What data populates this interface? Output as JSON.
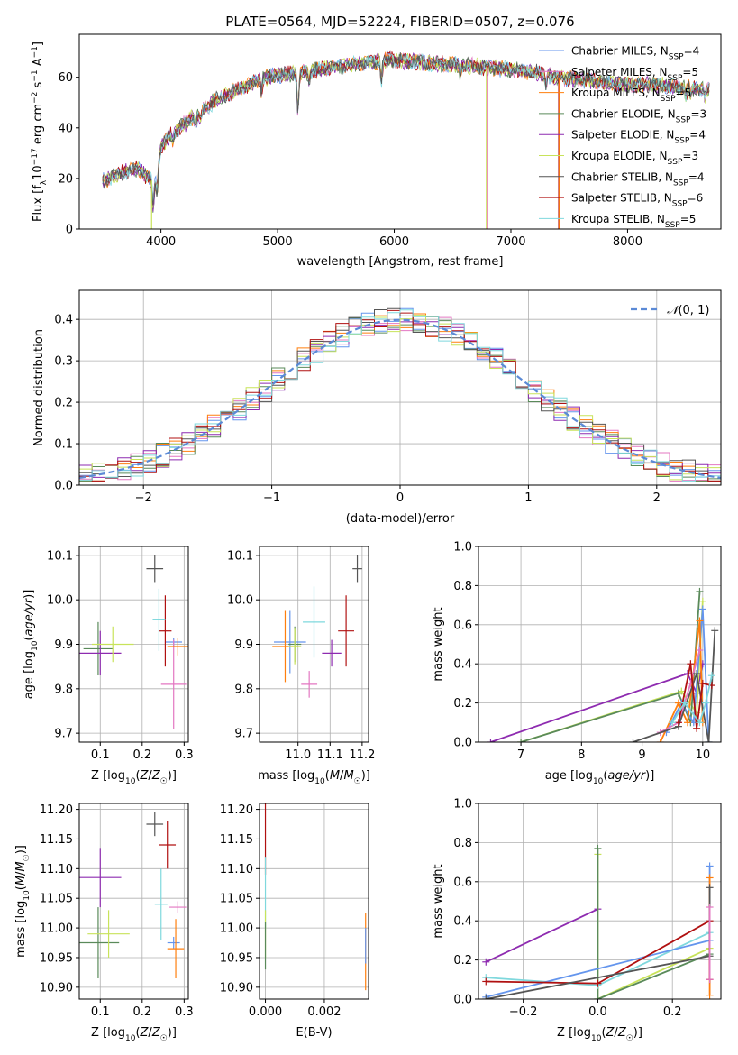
{
  "title": "PLATE=0564, MJD=52224, FIBERID=0507, z=0.076",
  "colors": {
    "Chabrier MILES": "#6495ed",
    "Salpeter MILES": "#e377c2",
    "Kroupa MILES": "#ff7f0e",
    "Chabrier ELODIE": "#5a8a5a",
    "Salpeter ELODIE": "#8e2bb0",
    "Kroupa ELODIE": "#c8e35a",
    "Chabrier STELIB": "#555555",
    "Salpeter STELIB": "#b01010",
    "Kroupa STELIB": "#7fd8dd"
  },
  "chart_data": [
    {
      "type": "line",
      "name": "spectrum",
      "xlabel": "wavelength [Angstrom, rest frame]",
      "ylabel": "Flux [fλ10⁻¹⁷ erg cm⁻² s⁻¹ A⁻¹]",
      "xlim": [
        3300,
        8800
      ],
      "ylim": [
        0,
        77
      ],
      "xticks": [
        4000,
        5000,
        6000,
        7000,
        8000
      ],
      "yticks": [
        0,
        20,
        40,
        60
      ],
      "legend_position": "top-right",
      "legend": [
        {
          "model": "Chabrier MILES",
          "label": "Chabrier MILES, N",
          "sub": "SSP",
          "tail": "=4"
        },
        {
          "model": "Salpeter MILES",
          "label": "Salpeter MILES, N",
          "sub": "SSP",
          "tail": "=5"
        },
        {
          "model": "Kroupa MILES",
          "label": "Kroupa MILES, N",
          "sub": "SSP",
          "tail": "=5"
        },
        {
          "model": "Chabrier ELODIE",
          "label": "Chabrier ELODIE, N",
          "sub": "SSP",
          "tail": "=3"
        },
        {
          "model": "Salpeter ELODIE",
          "label": "Salpeter ELODIE, N",
          "sub": "SSP",
          "tail": "=4"
        },
        {
          "model": "Kroupa ELODIE",
          "label": "Kroupa ELODIE, N",
          "sub": "SSP",
          "tail": "=3"
        },
        {
          "model": "Chabrier STELIB",
          "label": "Chabrier STELIB, N",
          "sub": "SSP",
          "tail": "=4"
        },
        {
          "model": "Salpeter STELIB",
          "label": "Salpeter STELIB, N",
          "sub": "SSP",
          "tail": "=6"
        },
        {
          "model": "Kroupa STELIB",
          "label": "Kroupa STELIB, N",
          "sub": "SSP",
          "tail": "=5"
        }
      ],
      "continuum_x": [
        3500,
        3650,
        3800,
        3950,
        4000,
        4100,
        4300,
        4500,
        4700,
        4900,
        5200,
        5500,
        5800,
        6000,
        6200,
        6500,
        6800,
        7000,
        7200,
        7400,
        7600,
        7800,
        8000,
        8200,
        8500,
        8700
      ],
      "continuum_y": [
        19,
        22,
        24,
        18,
        33,
        38,
        45,
        52,
        56,
        60,
        62,
        64,
        66,
        67,
        66,
        65,
        64,
        63,
        62,
        60,
        59,
        58,
        57,
        57,
        56,
        55
      ],
      "drops": [
        {
          "model": "Kroupa ELODIE",
          "x": 3920
        },
        {
          "model": "Kroupa ELODIE",
          "x": 6790
        },
        {
          "model": "Kroupa MILES",
          "x": 6800
        },
        {
          "model": "Salpeter MILES",
          "x": 6800
        },
        {
          "model": "Salpeter STELIB",
          "x": 7410
        },
        {
          "model": "Kroupa MILES",
          "x": 7415
        }
      ]
    },
    {
      "type": "step",
      "name": "residual-histogram",
      "xlabel": "(data-model)/error",
      "ylabel": "Normed distribution",
      "xlim": [
        -2.5,
        2.5
      ],
      "ylim": [
        0,
        0.47
      ],
      "xticks": [
        -2,
        -1,
        0,
        1,
        2
      ],
      "yticks": [
        0.0,
        0.1,
        0.2,
        0.3,
        0.4
      ],
      "legend_position": "top-right",
      "gaussian_label": "N(0,1)",
      "bins": 50,
      "series": [
        {
          "model": "Chabrier MILES",
          "seed": 1
        },
        {
          "model": "Salpeter MILES",
          "seed": 2
        },
        {
          "model": "Kroupa MILES",
          "seed": 3
        },
        {
          "model": "Chabrier ELODIE",
          "seed": 4
        },
        {
          "model": "Salpeter ELODIE",
          "seed": 5
        },
        {
          "model": "Kroupa ELODIE",
          "seed": 6
        },
        {
          "model": "Chabrier STELIB",
          "seed": 7
        },
        {
          "model": "Salpeter STELIB",
          "seed": 8
        },
        {
          "model": "Kroupa STELIB",
          "seed": 9
        }
      ]
    },
    {
      "type": "scatter",
      "name": "age-vs-Z",
      "xlabel": "Z [log10(Z/Z☉)]",
      "ylabel": "age [log10(age/yr)]",
      "xlim": [
        0.05,
        0.31
      ],
      "ylim": [
        9.68,
        10.12
      ],
      "xticks": [
        0.1,
        0.2,
        0.3
      ],
      "xtick_labels": [
        "0.1",
        "0.2",
        "0.3"
      ],
      "yticks": [
        9.7,
        9.8,
        9.9,
        10.0,
        10.1
      ],
      "ytick_labels": [
        "9.7",
        "9.8",
        "9.9",
        "10.0",
        "10.1"
      ],
      "points": [
        {
          "model": "Chabrier MILES",
          "x": 0.275,
          "y": 9.905,
          "xerr": 0.02,
          "yerr": 0.01
        },
        {
          "model": "Salpeter MILES",
          "x": 0.275,
          "y": 9.81,
          "xerr": 0.03,
          "yerr": 0.1
        },
        {
          "model": "Kroupa MILES",
          "x": 0.285,
          "y": 9.895,
          "xerr": 0.025,
          "yerr": 0.02
        },
        {
          "model": "Chabrier ELODIE",
          "x": 0.095,
          "y": 9.89,
          "xerr": 0.035,
          "yerr": 0.06
        },
        {
          "model": "Salpeter ELODIE",
          "x": 0.1,
          "y": 9.88,
          "xerr": 0.05,
          "yerr": 0.05
        },
        {
          "model": "Kroupa ELODIE",
          "x": 0.13,
          "y": 9.9,
          "xerr": 0.05,
          "yerr": 0.04
        },
        {
          "model": "Chabrier STELIB",
          "x": 0.23,
          "y": 10.07,
          "xerr": 0.02,
          "yerr": 0.03
        },
        {
          "model": "Salpeter STELIB",
          "x": 0.255,
          "y": 9.93,
          "xerr": 0.015,
          "yerr": 0.08
        },
        {
          "model": "Kroupa STELIB",
          "x": 0.24,
          "y": 9.955,
          "xerr": 0.015,
          "yerr": 0.07
        }
      ]
    },
    {
      "type": "scatter",
      "name": "age-vs-mass",
      "xlabel": "mass [log10(M/M☉)]",
      "ylabel": "",
      "xlim": [
        10.88,
        11.22
      ],
      "ylim": [
        9.68,
        10.12
      ],
      "xticks": [
        11.0,
        11.1,
        11.2
      ],
      "xtick_labels": [
        "11.0",
        "11.1",
        "11.2"
      ],
      "yticks": [
        9.7,
        9.8,
        9.9,
        10.0,
        10.1
      ],
      "ytick_labels": [
        "9.7",
        "9.8",
        "9.9",
        "10.0",
        "10.1"
      ],
      "points": [
        {
          "model": "Chabrier MILES",
          "x": 10.975,
          "y": 9.905,
          "xerr": 0.05,
          "yerr": 0.07
        },
        {
          "model": "Salpeter MILES",
          "x": 11.035,
          "y": 9.81,
          "xerr": 0.025,
          "yerr": 0.03
        },
        {
          "model": "Kroupa MILES",
          "x": 10.96,
          "y": 9.895,
          "xerr": 0.04,
          "yerr": 0.08
        },
        {
          "model": "Chabrier ELODIE",
          "x": 10.99,
          "y": 9.9,
          "xerr": 0.02,
          "yerr": 0.04
        },
        {
          "model": "Salpeter ELODIE",
          "x": 11.105,
          "y": 9.88,
          "xerr": 0.03,
          "yerr": 0.03
        },
        {
          "model": "Kroupa ELODIE",
          "x": 10.99,
          "y": 9.895,
          "xerr": 0.02,
          "yerr": 0.04
        },
        {
          "model": "Chabrier STELIB",
          "x": 11.185,
          "y": 10.07,
          "xerr": 0.015,
          "yerr": 0.03
        },
        {
          "model": "Salpeter STELIB",
          "x": 11.15,
          "y": 9.93,
          "xerr": 0.025,
          "yerr": 0.08
        },
        {
          "model": "Kroupa STELIB",
          "x": 11.05,
          "y": 9.95,
          "xerr": 0.035,
          "yerr": 0.08
        }
      ]
    },
    {
      "type": "line",
      "name": "mass-weight-vs-age",
      "xlabel": "age [log10(age/yr)]",
      "ylabel": "mass weight",
      "xlim": [
        6.3,
        10.3
      ],
      "ylim": [
        0,
        1.0
      ],
      "xticks": [
        7,
        8,
        9,
        10
      ],
      "xtick_labels": [
        "7",
        "8",
        "9",
        "10"
      ],
      "yticks": [
        0,
        0.2,
        0.4,
        0.6,
        0.8,
        1.0
      ],
      "ytick_labels": [
        "0.0",
        "0.2",
        "0.4",
        "0.6",
        "0.8",
        "1.0"
      ],
      "series": [
        {
          "model": "Salpeter ELODIE",
          "x": [
            6.5,
            9.75,
            9.9,
            10.0
          ],
          "y": [
            0.0,
            0.35,
            0.25,
            0.4
          ]
        },
        {
          "model": "Kroupa ELODIE",
          "x": [
            7.0,
            9.65,
            9.9,
            10.0
          ],
          "y": [
            0.0,
            0.26,
            0.15,
            0.72
          ]
        },
        {
          "model": "Chabrier ELODIE",
          "x": [
            7.0,
            9.6,
            9.8,
            9.95
          ],
          "y": [
            0.0,
            0.25,
            0.1,
            0.77
          ]
        },
        {
          "model": "Chabrier MILES",
          "x": [
            9.4,
            9.65,
            9.85,
            10.0,
            10.1
          ],
          "y": [
            0.05,
            0.2,
            0.1,
            0.68,
            0.0
          ]
        },
        {
          "model": "Kroupa MILES",
          "x": [
            9.3,
            9.6,
            9.75,
            9.95,
            10.0
          ],
          "y": [
            0.0,
            0.2,
            0.1,
            0.62,
            0.1
          ]
        },
        {
          "model": "Salpeter MILES",
          "x": [
            9.3,
            9.6,
            9.8,
            9.95
          ],
          "y": [
            0.05,
            0.1,
            0.3,
            0.47
          ]
        },
        {
          "model": "Chabrier STELIB",
          "x": [
            8.85,
            9.6,
            9.9,
            10.1,
            10.2
          ],
          "y": [
            0.0,
            0.08,
            0.35,
            0.0,
            0.57
          ]
        },
        {
          "model": "Salpeter STELIB",
          "x": [
            9.6,
            9.8,
            9.9,
            10.0,
            10.15
          ],
          "y": [
            0.1,
            0.4,
            0.07,
            0.3,
            0.29
          ]
        },
        {
          "model": "Kroupa STELIB",
          "x": [
            9.5,
            9.7,
            9.95,
            10.05,
            10.15
          ],
          "y": [
            0.1,
            0.2,
            0.1,
            0.2,
            0.34
          ]
        }
      ]
    },
    {
      "type": "scatter",
      "name": "mass-vs-Z",
      "xlabel": "Z [log10(Z/Z☉)]",
      "ylabel": "mass [log10(M/M☉)]",
      "xlim": [
        0.05,
        0.31
      ],
      "ylim": [
        10.88,
        11.21
      ],
      "xticks": [
        0.1,
        0.2,
        0.3
      ],
      "xtick_labels": [
        "0.1",
        "0.2",
        "0.3"
      ],
      "yticks": [
        10.9,
        10.95,
        11.0,
        11.05,
        11.1,
        11.15,
        11.2
      ],
      "ytick_labels": [
        "10.90",
        "10.95",
        "11.00",
        "11.05",
        "11.10",
        "11.15",
        "11.20"
      ],
      "points": [
        {
          "model": "Chabrier MILES",
          "x": 0.275,
          "y": 10.975,
          "xerr": 0.015,
          "yerr": 0.01
        },
        {
          "model": "Salpeter MILES",
          "x": 0.285,
          "y": 11.035,
          "xerr": 0.02,
          "yerr": 0.01
        },
        {
          "model": "Kroupa MILES",
          "x": 0.28,
          "y": 10.965,
          "xerr": 0.02,
          "yerr": 0.05
        },
        {
          "model": "Chabrier ELODIE",
          "x": 0.095,
          "y": 10.975,
          "xerr": 0.05,
          "yerr": 0.06
        },
        {
          "model": "Salpeter ELODIE",
          "x": 0.1,
          "y": 11.085,
          "xerr": 0.05,
          "yerr": 0.05
        },
        {
          "model": "Kroupa ELODIE",
          "x": 0.12,
          "y": 10.99,
          "xerr": 0.05,
          "yerr": 0.04
        },
        {
          "model": "Chabrier STELIB",
          "x": 0.23,
          "y": 11.175,
          "xerr": 0.02,
          "yerr": 0.02
        },
        {
          "model": "Salpeter STELIB",
          "x": 0.26,
          "y": 11.14,
          "xerr": 0.02,
          "yerr": 0.04
        },
        {
          "model": "Kroupa STELIB",
          "x": 0.245,
          "y": 11.04,
          "xerr": 0.015,
          "yerr": 0.06
        }
      ]
    },
    {
      "type": "scatter",
      "name": "mass-vs-EBV",
      "xlabel": "E(B-V)",
      "ylabel": "",
      "xlim": [
        -0.0002,
        0.0035
      ],
      "ylim": [
        10.88,
        11.21
      ],
      "xticks": [
        0.0,
        0.002
      ],
      "xtick_labels": [
        "0.000",
        "0.002"
      ],
      "yticks": [
        10.9,
        10.95,
        11.0,
        11.05,
        11.1,
        11.15,
        11.2
      ],
      "ytick_labels": [
        "10.90",
        "10.95",
        "11.00",
        "11.05",
        "11.10",
        "11.15",
        "11.20"
      ],
      "points": [
        {
          "model": "Salpeter STELIB",
          "x": 0.0,
          "y": 11.15,
          "xerr": 0.0,
          "yerr": 0.06
        },
        {
          "model": "Kroupa STELIB",
          "x": 0.0,
          "y": 11.06,
          "xerr": 0.0,
          "yerr": 0.06
        },
        {
          "model": "Kroupa ELODIE",
          "x": 0.0,
          "y": 10.99,
          "xerr": 0.0,
          "yerr": 0.04
        },
        {
          "model": "Chabrier ELODIE",
          "x": 0.0,
          "y": 10.97,
          "xerr": 0.0,
          "yerr": 0.04
        },
        {
          "model": "Kroupa MILES",
          "x": 0.0034,
          "y": 10.96,
          "xerr": 0.0,
          "yerr": 0.065
        },
        {
          "model": "Chabrier MILES",
          "x": 0.0034,
          "y": 10.97,
          "xerr": 0.0,
          "yerr": 0.03
        }
      ]
    },
    {
      "type": "line",
      "name": "mass-weight-vs-Z",
      "xlabel": "Z [log10(Z/Z☉)]",
      "ylabel": "mass weight",
      "xlim": [
        -0.32,
        0.33
      ],
      "ylim": [
        0,
        1.0
      ],
      "xticks": [
        -0.2,
        0.0,
        0.2
      ],
      "xtick_labels": [
        "−0.2",
        "0.0",
        "0.2"
      ],
      "yticks": [
        0,
        0.2,
        0.4,
        0.6,
        0.8,
        1.0
      ],
      "ytick_labels": [
        "0.0",
        "0.2",
        "0.4",
        "0.6",
        "0.8",
        "1.0"
      ],
      "series": [
        {
          "model": "Salpeter ELODIE",
          "x": [
            -0.3,
            0.0
          ],
          "y": [
            0.19,
            0.46
          ]
        },
        {
          "model": "Kroupa ELODIE",
          "x": [
            0.0,
            0.0,
            0.3
          ],
          "y": [
            0.74,
            0.0,
            0.26
          ]
        },
        {
          "model": "Chabrier ELODIE",
          "x": [
            0.0,
            0.0,
            0.3
          ],
          "y": [
            0.77,
            0.0,
            0.23
          ]
        },
        {
          "model": "Kroupa STELIB",
          "x": [
            -0.3,
            0.0,
            0.3
          ],
          "y": [
            0.11,
            0.07,
            0.34
          ]
        },
        {
          "model": "Chabrier MILES",
          "x": [
            -0.3,
            0.3,
            0.3
          ],
          "y": [
            0.01,
            0.3,
            0.68
          ]
        },
        {
          "model": "Kroupa MILES",
          "x": [
            0.3,
            0.3
          ],
          "y": [
            0.02,
            0.62
          ]
        },
        {
          "model": "Salpeter STELIB",
          "x": [
            -0.3,
            0.0,
            0.3,
            0.3
          ],
          "y": [
            0.09,
            0.08,
            0.4,
            0.1
          ]
        },
        {
          "model": "Chabrier STELIB",
          "x": [
            -0.3,
            0.3,
            0.3
          ],
          "y": [
            0.0,
            0.22,
            0.57
          ]
        },
        {
          "model": "Salpeter MILES",
          "x": [
            0.3,
            0.3
          ],
          "y": [
            0.1,
            0.47
          ]
        }
      ]
    }
  ]
}
